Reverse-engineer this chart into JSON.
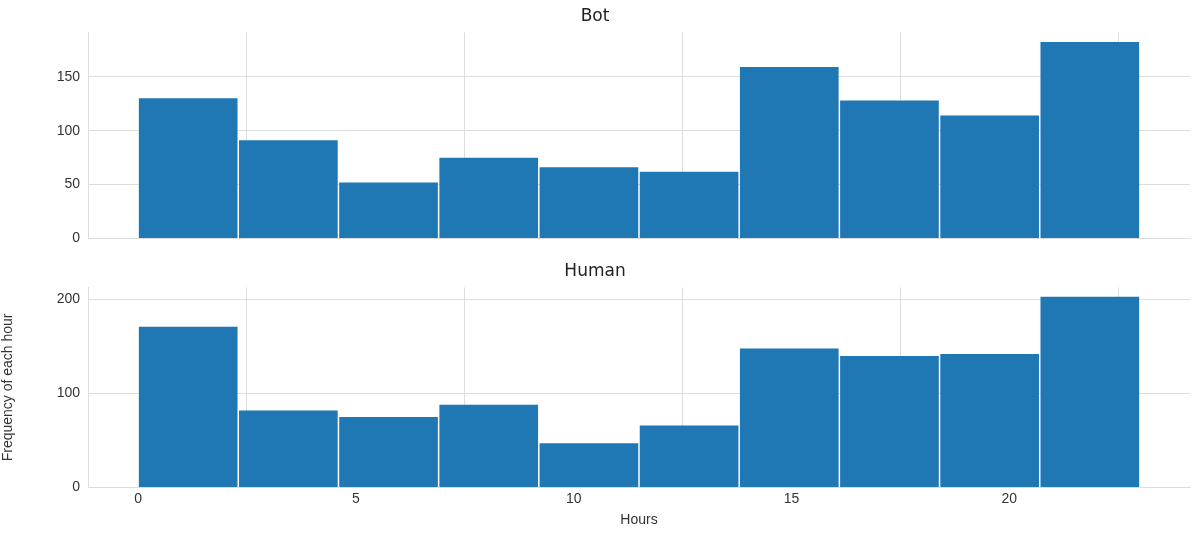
{
  "chart_data": [
    {
      "type": "histogram",
      "title": "Bot",
      "bins": [
        0,
        2.3,
        4.6,
        6.9,
        9.2,
        11.5,
        13.8,
        16.1,
        18.4,
        20.7,
        23
      ],
      "values": [
        130,
        91,
        52,
        75,
        66,
        62,
        159,
        128,
        114,
        182
      ],
      "color": "#1f77b4",
      "xlim": [
        -1.15,
        24.15
      ],
      "xticks": [
        0,
        5,
        10,
        15,
        20
      ],
      "ylim": [
        0,
        191
      ],
      "yticks": [
        0,
        50,
        100,
        150
      ],
      "grid": true,
      "tick_labels": "y"
    },
    {
      "type": "histogram",
      "title": "Human",
      "xlabel": "Hours",
      "ylabel": "Frequency of each hour",
      "bins": [
        0,
        2.3,
        4.6,
        6.9,
        9.2,
        11.5,
        13.8,
        16.1,
        18.4,
        20.7,
        23
      ],
      "values": [
        171,
        82,
        75,
        88,
        47,
        66,
        148,
        140,
        142,
        203
      ],
      "color": "#1f77b4",
      "xlim": [
        -1.15,
        24.15
      ],
      "xticks": [
        0,
        5,
        10,
        15,
        20
      ],
      "ylim": [
        0,
        213
      ],
      "yticks": [
        0,
        100,
        200
      ],
      "grid": true
    }
  ]
}
